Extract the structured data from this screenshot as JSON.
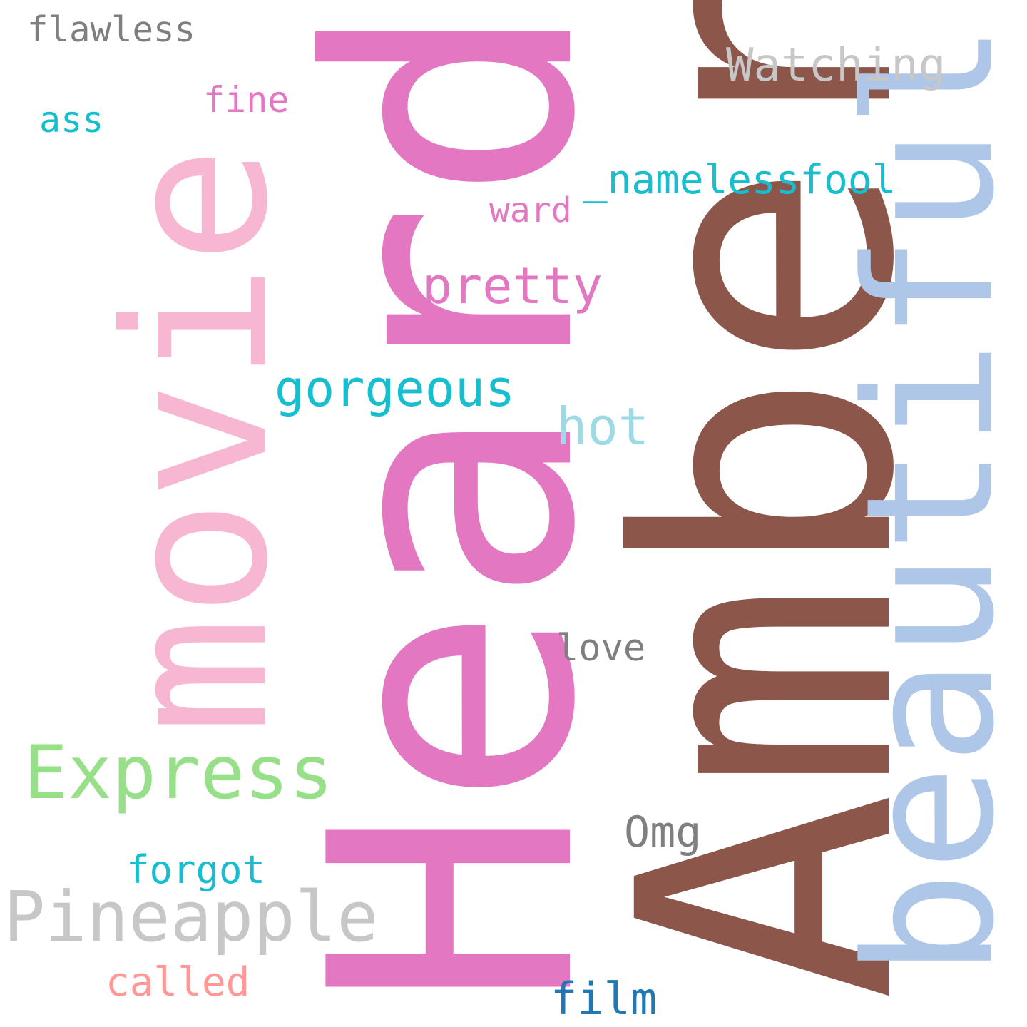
{
  "words": {
    "amber": {
      "text": "Amber",
      "color": "#8c564b"
    },
    "heard": {
      "text": "Heard",
      "color": "#e377c2"
    },
    "movie": {
      "text": "movie",
      "color": "#f7b6d2"
    },
    "beautiful": {
      "text": "beautiful",
      "color": "#aec7e8"
    },
    "express": {
      "text": "Express",
      "color": "#98df8a"
    },
    "pineapple": {
      "text": "Pineapple",
      "color": "#c7c7c7"
    },
    "gorgeous": {
      "text": "gorgeous",
      "color": "#17becf"
    },
    "pretty": {
      "text": "pretty",
      "color": "#e377c2"
    },
    "watching": {
      "text": "Watching",
      "color": "#c7c7c7"
    },
    "flawless": {
      "text": "flawless",
      "color": "#7f7f7f"
    },
    "namelessfool": {
      "text": "_namelessfool",
      "color": "#17becf"
    },
    "hot": {
      "text": "hot",
      "color": "#9edae5"
    },
    "omg": {
      "text": "Omg",
      "color": "#7f7f7f"
    },
    "forgot": {
      "text": "forgot",
      "color": "#17becf"
    },
    "film": {
      "text": "film",
      "color": "#1f77b4"
    },
    "called": {
      "text": "called",
      "color": "#ff9896"
    },
    "love": {
      "text": "love",
      "color": "#7f7f7f"
    },
    "fine": {
      "text": "fine",
      "color": "#e377c2"
    },
    "ass": {
      "text": "ass",
      "color": "#17becf"
    },
    "ward": {
      "text": "ward",
      "color": "#e377c2"
    }
  }
}
